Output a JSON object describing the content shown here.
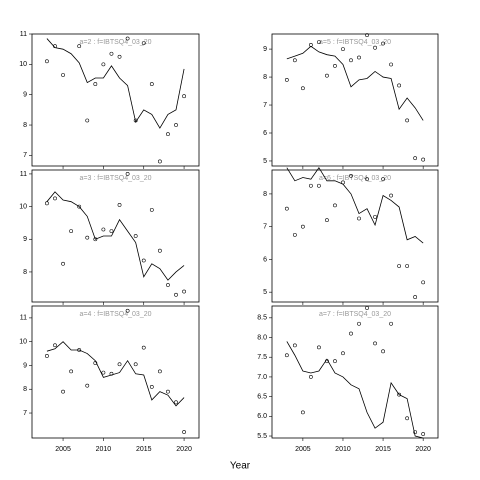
{
  "x_label": "Year",
  "chart_data": [
    {
      "type": "line",
      "title": "a=2 : f=IBTSQ4_03_20",
      "x": [
        2003,
        2004,
        2005,
        2006,
        2007,
        2008,
        2009,
        2010,
        2011,
        2012,
        2013,
        2014,
        2015,
        2016,
        2017,
        2018,
        2019,
        2020
      ],
      "xlim": [
        2001.15,
        2021.85
      ],
      "xticks": [
        2005,
        2010,
        2015,
        2020
      ],
      "ylim": [
        6.65,
        11.0
      ],
      "yticks": [
        7,
        8,
        9,
        10,
        11
      ],
      "series": [
        {
          "style": "line",
          "color": "#000000",
          "values": [
            10.85,
            10.55,
            10.5,
            10.35,
            10.05,
            9.4,
            9.55,
            9.55,
            9.95,
            9.55,
            9.3,
            8.1,
            8.5,
            8.35,
            7.9,
            8.35,
            8.5,
            9.85
          ]
        },
        {
          "style": "points",
          "color": "#000000",
          "values": [
            10.1,
            10.6,
            9.65,
            null,
            10.6,
            8.15,
            9.35,
            10.0,
            10.35,
            10.25,
            10.85,
            8.15,
            10.7,
            9.35,
            6.8,
            7.7,
            8.0,
            8.95
          ]
        }
      ]
    },
    {
      "type": "line",
      "title": "a=5 : f=IBTSQ4_03_20",
      "x": [
        2003,
        2004,
        2005,
        2006,
        2007,
        2008,
        2009,
        2010,
        2011,
        2012,
        2013,
        2014,
        2015,
        2016,
        2017,
        2018,
        2019,
        2020
      ],
      "xlim": [
        2001.15,
        2021.85
      ],
      "xticks": [
        2005,
        2010,
        2015,
        2020
      ],
      "ylim": [
        4.82,
        9.54
      ],
      "yticks": [
        5,
        6,
        7,
        8,
        9
      ],
      "series": [
        {
          "style": "line",
          "color": "#000000",
          "values": [
            8.65,
            8.75,
            8.85,
            9.1,
            8.9,
            8.8,
            8.75,
            8.45,
            7.65,
            7.9,
            7.95,
            8.2,
            8.0,
            7.95,
            6.85,
            7.25,
            6.9,
            6.45
          ]
        },
        {
          "style": "points",
          "color": "#000000",
          "values": [
            7.9,
            8.6,
            7.6,
            9.15,
            9.25,
            8.05,
            8.4,
            9.0,
            8.6,
            8.7,
            9.5,
            9.05,
            9.2,
            8.45,
            7.7,
            6.45,
            5.1,
            5.05
          ]
        }
      ]
    },
    {
      "type": "line",
      "title": "a=3 : f=IBTSQ4_03_20",
      "x": [
        2003,
        2004,
        2005,
        2006,
        2007,
        2008,
        2009,
        2010,
        2011,
        2012,
        2013,
        2014,
        2015,
        2016,
        2017,
        2018,
        2019,
        2020
      ],
      "xlim": [
        2001.15,
        2021.85
      ],
      "xticks": [
        2005,
        2010,
        2015,
        2020
      ],
      "ylim": [
        7.08,
        11.12
      ],
      "yticks": [
        8,
        9,
        10,
        11
      ],
      "series": [
        {
          "style": "line",
          "color": "#000000",
          "values": [
            10.15,
            10.45,
            10.2,
            10.15,
            10.0,
            9.7,
            9.0,
            9.1,
            9.1,
            9.6,
            9.25,
            8.9,
            7.85,
            8.25,
            8.1,
            7.75,
            8.0,
            8.2
          ]
        },
        {
          "style": "points",
          "color": "#000000",
          "values": [
            10.1,
            10.25,
            8.25,
            9.25,
            10.0,
            9.05,
            9.0,
            9.3,
            9.25,
            10.05,
            11.0,
            9.1,
            8.35,
            9.9,
            8.65,
            7.6,
            7.3,
            7.4
          ]
        }
      ]
    },
    {
      "type": "line",
      "title": "a=6 : f=IBTSQ4_03_20",
      "x": [
        2003,
        2004,
        2005,
        2006,
        2007,
        2008,
        2009,
        2010,
        2011,
        2012,
        2013,
        2014,
        2015,
        2016,
        2017,
        2018,
        2019,
        2020
      ],
      "xlim": [
        2001.15,
        2021.85
      ],
      "xticks": [
        2005,
        2010,
        2015,
        2020
      ],
      "ylim": [
        4.7,
        8.73
      ],
      "yticks": [
        5,
        6,
        7,
        8
      ],
      "series": [
        {
          "style": "line",
          "color": "#000000",
          "values": [
            8.8,
            8.4,
            8.5,
            8.45,
            8.8,
            8.4,
            8.4,
            8.3,
            8.0,
            7.4,
            7.55,
            7.05,
            7.95,
            7.8,
            7.6,
            6.6,
            6.7,
            6.5
          ]
        },
        {
          "style": "points",
          "color": "#000000",
          "values": [
            7.55,
            6.75,
            7.0,
            8.25,
            8.25,
            7.2,
            7.65,
            8.35,
            8.55,
            7.25,
            8.45,
            7.3,
            8.45,
            7.95,
            5.8,
            5.8,
            4.85,
            5.3
          ]
        }
      ]
    },
    {
      "type": "line",
      "title": "a=4 : f=IBTSQ4_03_20",
      "x": [
        2003,
        2004,
        2005,
        2006,
        2007,
        2008,
        2009,
        2010,
        2011,
        2012,
        2013,
        2014,
        2015,
        2016,
        2017,
        2018,
        2019,
        2020
      ],
      "xlim": [
        2001.15,
        2021.85
      ],
      "xticks": [
        2005,
        2010,
        2015,
        2020
      ],
      "ylim": [
        5.95,
        11.5
      ],
      "yticks": [
        7,
        8,
        9,
        10,
        11
      ],
      "series": [
        {
          "style": "line",
          "color": "#000000",
          "values": [
            9.6,
            9.7,
            10.0,
            9.65,
            9.65,
            9.5,
            9.2,
            8.5,
            8.6,
            8.7,
            9.2,
            8.65,
            8.6,
            7.55,
            7.9,
            7.75,
            7.3,
            7.65
          ]
        },
        {
          "style": "points",
          "color": "#000000",
          "values": [
            9.4,
            9.85,
            7.9,
            8.75,
            9.65,
            8.15,
            9.1,
            8.7,
            8.65,
            9.05,
            11.3,
            9.05,
            9.75,
            8.1,
            8.75,
            7.9,
            7.45,
            6.2
          ]
        }
      ]
    },
    {
      "type": "line",
      "title": "a=7 : f=IBTSQ4_03_20",
      "x": [
        2003,
        2004,
        2005,
        2006,
        2007,
        2008,
        2009,
        2010,
        2011,
        2012,
        2013,
        2014,
        2015,
        2016,
        2017,
        2018,
        2019,
        2020
      ],
      "xlim": [
        2001.15,
        2021.85
      ],
      "xticks": [
        2005,
        2010,
        2015,
        2020
      ],
      "ylim": [
        5.45,
        8.8
      ],
      "yticks": [
        {
          "value": 5.5,
          "label": "5.5"
        },
        {
          "value": 6,
          "label": "6.0"
        },
        {
          "value": 6.5,
          "label": "6.5"
        },
        {
          "value": 7,
          "label": "7.0"
        },
        {
          "value": 7.5,
          "label": "7.5"
        },
        {
          "value": 8,
          "label": "8.0"
        },
        {
          "value": 8.5,
          "label": "8.5"
        }
      ],
      "series": [
        {
          "style": "line",
          "color": "#000000",
          "values": [
            7.9,
            7.55,
            7.15,
            7.1,
            7.15,
            7.45,
            7.1,
            7.0,
            6.8,
            6.7,
            6.1,
            5.7,
            5.85,
            6.85,
            6.55,
            6.45,
            5.5,
            5.45
          ]
        },
        {
          "style": "points",
          "color": "#000000",
          "values": [
            7.55,
            7.8,
            6.1,
            7.0,
            7.75,
            7.4,
            7.4,
            7.6,
            8.1,
            8.35,
            8.75,
            7.85,
            7.65,
            8.35,
            6.55,
            5.95,
            5.6,
            5.55
          ]
        }
      ]
    }
  ]
}
